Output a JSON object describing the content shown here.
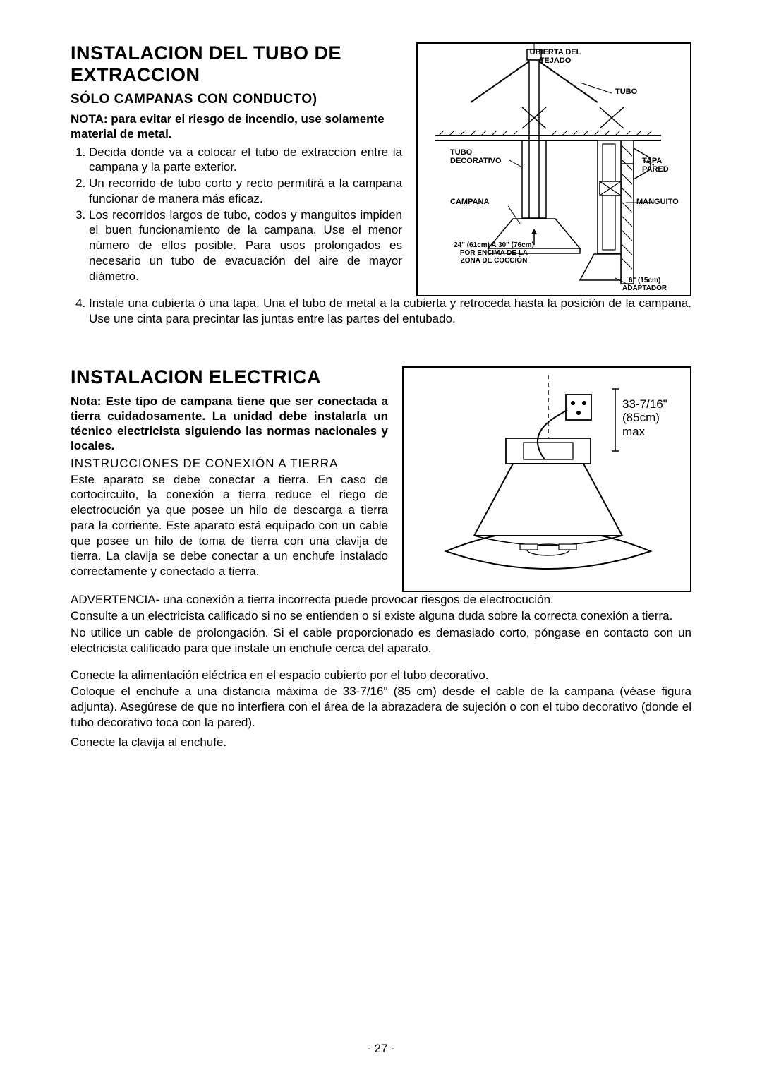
{
  "section1": {
    "title": "INSTALACION DEL TUBO DE EXTRACCION",
    "subtitle": "SÓLO CAMPANAS CON CONDUCTO)",
    "note": "NOTA: para evitar el riesgo de incendio, use solamente material de metal.",
    "items": [
      "Decida donde va a colocar el tubo de extracción entre la campana y la parte exterior.",
      "Un recorrido de tubo corto y recto permitirá a la campana funcionar de manera más eficaz.",
      "Los recorridos largos de tubo, codos y manguitos impiden el buen funcionamiento de la campana. Use el menor número de ellos posible. Para usos prolongados es necesario un tubo de evacuación del aire de mayor diámetro.",
      "Instale una cubierta ó una tapa. Una el tubo de metal a la cubierta y retroceda hasta la posición de la campana. Use une cinta para precintar las juntas entre las partes del entubado."
    ]
  },
  "fig1_labels": {
    "roof_cover": "UBIERTA DEL\nTEJADO",
    "tube": "TUBO",
    "deco_tube": "TUBO\nDECORATIVO",
    "cap": "TAPA\nPARED",
    "hood": "CAMPANA",
    "sleeve": "MANGUITO",
    "clearance": "24\" (61cm) A 30\" (76cm)\nPOR ENCIMA DE LA\nZONA DE COCCIÓN",
    "adapter": "6\" (15cm)\nADAPTADOR"
  },
  "section2": {
    "title": "INSTALACION ELECTRICA",
    "note": "Nota: Este tipo de campana tiene que ser conectada a tierra cuidadosamente. La unidad debe instalarla un técnico electricista siguiendo las normas nacionales y locales.",
    "grounding_title": "INSTRUCCIONES DE CONEXIÓN A TIERRA",
    "paras": [
      "Este aparato se debe conectar a tierra. En caso de cortocircuito, la conexión a tierra reduce el riego de electrocución ya que posee un hilo de descarga a tierra para la corriente. Este aparato está equipado con un cable que posee un hilo de toma de tierra con una clavija de tierra. La clavija se debe conectar a un enchufe instalado correctamente y conectado a tierra.",
      "ADVERTENCIA- una conexión a tierra incorrecta puede provocar riesgos de electrocución.",
      "Consulte a un electricista calificado si no se entienden o si existe alguna duda sobre la correcta conexión a tierra.",
      "No utilice un cable de prolongación. Si el cable proporcionado es demasiado corto, póngase en contacto con un electricista calificado para que instale un enchufe cerca del aparato."
    ],
    "extra": [
      "Conecte la alimentación eléctrica en el espacio cubierto por el tubo decorativo.",
      "Coloque el enchufe a una distancia máxima de 33-7/16\" (85 cm) desde el cable de la campana (véase figura adjunta). Asegúrese de que no interfiera con el área de la abrazadera de sujeción o con el tubo decorativo (donde el tubo decorativo toca con la pared).",
      "Conecte la clavija al enchufe."
    ]
  },
  "fig2_labels": {
    "dim": "33-7/16\"\n(85cm)\nmax"
  },
  "page_number": "- 27 -"
}
